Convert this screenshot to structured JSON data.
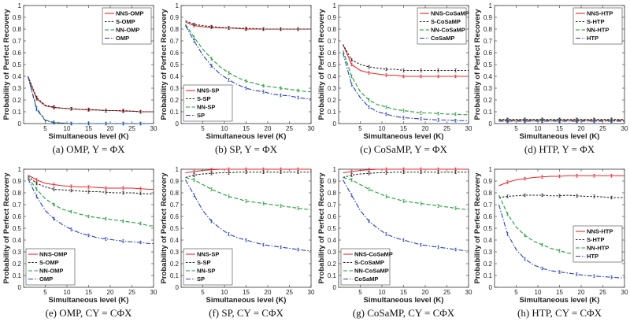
{
  "colors": {
    "NNS": "#e8262b",
    "S": "#222222",
    "NN": "#1f9a35",
    "base": "#2540b8"
  },
  "chart_data": [
    {
      "type": "line",
      "caption": "(a) OMP, Y = ΦX",
      "xlabel": "Simultaneous level (K)",
      "ylabel": "Probability  of  Perfect  Recovery",
      "xlim": [
        0,
        30
      ],
      "ylim": [
        0,
        1
      ],
      "xticks": [
        5,
        10,
        15,
        20,
        25,
        30
      ],
      "yticks": [
        0,
        0.1,
        0.2,
        0.3,
        0.4,
        0.5,
        0.6,
        0.7,
        0.8,
        0.9,
        1
      ],
      "legend_pos": "top-right",
      "x": [
        1,
        3,
        5,
        7,
        9,
        11,
        13,
        15,
        17,
        19,
        21,
        23,
        25,
        27,
        29,
        30
      ],
      "series": [
        {
          "name": "NNS-OMP",
          "style": "NNS",
          "values": [
            0.4,
            0.21,
            0.15,
            0.135,
            0.13,
            0.125,
            0.12,
            0.115,
            0.115,
            0.11,
            0.11,
            0.105,
            0.105,
            0.1,
            0.1,
            0.1
          ]
        },
        {
          "name": "S-OMP",
          "style": "S",
          "values": [
            0.4,
            0.22,
            0.155,
            0.14,
            0.13,
            0.125,
            0.12,
            0.12,
            0.115,
            0.11,
            0.11,
            0.11,
            0.105,
            0.1,
            0.1,
            0.1
          ]
        },
        {
          "name": "NN-OMP",
          "style": "NN",
          "values": [
            0.4,
            0.13,
            0.03,
            0.01,
            0.005,
            0,
            0,
            0,
            0,
            0,
            0,
            0,
            0,
            0,
            0,
            0
          ]
        },
        {
          "name": "OMP",
          "style": "base",
          "values": [
            0.4,
            0.12,
            0.025,
            0.008,
            0.003,
            0,
            0,
            0,
            0,
            0,
            0,
            0,
            0,
            0,
            0,
            0
          ]
        }
      ]
    },
    {
      "type": "line",
      "caption": "(b) SP, Y = ΦX",
      "xlabel": "Simultaneous level (K)",
      "ylabel": "Probability  of  Perfect  Recovery",
      "xlim": [
        0,
        30
      ],
      "ylim": [
        0,
        1
      ],
      "xticks": [
        5,
        10,
        15,
        20,
        25,
        30
      ],
      "yticks": [
        0,
        0.1,
        0.2,
        0.3,
        0.4,
        0.5,
        0.6,
        0.7,
        0.8,
        0.9,
        1
      ],
      "legend_pos": "bottom-left",
      "x": [
        1,
        3,
        5,
        7,
        9,
        11,
        13,
        15,
        17,
        19,
        21,
        23,
        25,
        27,
        29,
        30
      ],
      "series": [
        {
          "name": "NNS-SP",
          "style": "NNS",
          "values": [
            0.86,
            0.83,
            0.82,
            0.815,
            0.81,
            0.81,
            0.805,
            0.8,
            0.8,
            0.8,
            0.8,
            0.8,
            0.8,
            0.8,
            0.8,
            0.8
          ]
        },
        {
          "name": "S-SP",
          "style": "S",
          "values": [
            0.87,
            0.84,
            0.83,
            0.82,
            0.815,
            0.81,
            0.81,
            0.805,
            0.805,
            0.8,
            0.8,
            0.8,
            0.8,
            0.8,
            0.8,
            0.8
          ]
        },
        {
          "name": "NN-SP",
          "style": "NN",
          "values": [
            0.84,
            0.73,
            0.63,
            0.55,
            0.48,
            0.43,
            0.39,
            0.36,
            0.34,
            0.32,
            0.31,
            0.3,
            0.29,
            0.28,
            0.27,
            0.27
          ]
        },
        {
          "name": "SP",
          "style": "base",
          "values": [
            0.83,
            0.7,
            0.58,
            0.49,
            0.42,
            0.37,
            0.33,
            0.3,
            0.28,
            0.27,
            0.25,
            0.24,
            0.235,
            0.22,
            0.21,
            0.21
          ]
        }
      ]
    },
    {
      "type": "line",
      "caption": "(c) CoSaMP, Y = ΦX",
      "xlabel": "Simultaneous level (K)",
      "ylabel": "Probability  of  Perfect  Recovery",
      "xlim": [
        0,
        30
      ],
      "ylim": [
        0,
        1
      ],
      "xticks": [
        5,
        10,
        15,
        20,
        25,
        30
      ],
      "yticks": [
        0,
        0.1,
        0.2,
        0.3,
        0.4,
        0.5,
        0.6,
        0.7,
        0.8,
        0.9,
        1
      ],
      "legend_pos": "top-right",
      "x": [
        1,
        3,
        5,
        7,
        9,
        11,
        13,
        15,
        17,
        19,
        21,
        23,
        25,
        27,
        29,
        30
      ],
      "series": [
        {
          "name": "NNS-CoSaMP",
          "style": "NNS",
          "values": [
            0.67,
            0.5,
            0.45,
            0.43,
            0.42,
            0.41,
            0.41,
            0.4,
            0.4,
            0.4,
            0.4,
            0.4,
            0.4,
            0.4,
            0.4,
            0.4
          ]
        },
        {
          "name": "S-CoSaMP",
          "style": "S",
          "values": [
            0.67,
            0.54,
            0.5,
            0.48,
            0.47,
            0.46,
            0.46,
            0.45,
            0.45,
            0.45,
            0.45,
            0.45,
            0.45,
            0.45,
            0.45,
            0.45
          ]
        },
        {
          "name": "NN-CoSaMP",
          "style": "NN",
          "values": [
            0.62,
            0.4,
            0.27,
            0.2,
            0.16,
            0.14,
            0.12,
            0.11,
            0.1,
            0.09,
            0.09,
            0.085,
            0.08,
            0.08,
            0.075,
            0.075
          ]
        },
        {
          "name": "CoSaMP",
          "style": "base",
          "values": [
            0.6,
            0.33,
            0.22,
            0.14,
            0.1,
            0.08,
            0.06,
            0.05,
            0.045,
            0.04,
            0.035,
            0.03,
            0.03,
            0.025,
            0.025,
            0.025
          ]
        }
      ]
    },
    {
      "type": "line",
      "caption": "(d) HTP, Y = ΦX",
      "xlabel": "Simultaneous level (K)",
      "ylabel": "Probability  of  Perfect  Recovery",
      "xlim": [
        0,
        30
      ],
      "ylim": [
        0,
        1
      ],
      "xticks": [
        5,
        10,
        15,
        20,
        25,
        30
      ],
      "yticks": [
        0,
        0.1,
        0.2,
        0.3,
        0.4,
        0.5,
        0.6,
        0.7,
        0.8,
        0.9,
        1
      ],
      "legend_pos": "top-right",
      "x": [
        1,
        3,
        5,
        7,
        9,
        11,
        13,
        15,
        17,
        19,
        21,
        23,
        25,
        27,
        29,
        30
      ],
      "series": [
        {
          "name": "NNS-HTP",
          "style": "NNS",
          "values": [
            0.03,
            0.03,
            0.03,
            0.03,
            0.03,
            0.03,
            0.03,
            0.03,
            0.03,
            0.03,
            0.03,
            0.03,
            0.03,
            0.03,
            0.03,
            0.03
          ]
        },
        {
          "name": "S-HTP",
          "style": "S",
          "values": [
            0.035,
            0.035,
            0.035,
            0.035,
            0.035,
            0.035,
            0.035,
            0.035,
            0.035,
            0.035,
            0.035,
            0.035,
            0.035,
            0.035,
            0.035,
            0.035
          ]
        },
        {
          "name": "NN-HTP",
          "style": "NN",
          "values": [
            0.025,
            0.025,
            0.025,
            0.025,
            0.025,
            0.025,
            0.025,
            0.025,
            0.025,
            0.025,
            0.025,
            0.025,
            0.025,
            0.025,
            0.025,
            0.025
          ]
        },
        {
          "name": "HTP",
          "style": "base",
          "values": [
            0.02,
            0.02,
            0.02,
            0.02,
            0.02,
            0.02,
            0.02,
            0.02,
            0.02,
            0.02,
            0.02,
            0.02,
            0.02,
            0.02,
            0.02,
            0.02
          ]
        }
      ]
    },
    {
      "type": "line",
      "caption": "(e) OMP, CY = CΦX",
      "xlabel": "Simultaneous level (K)",
      "ylabel": "Probability  of  Perfect  Recovery",
      "xlim": [
        0,
        30
      ],
      "ylim": [
        0,
        1
      ],
      "xticks": [
        5,
        10,
        15,
        20,
        25,
        30
      ],
      "yticks": [
        0,
        0.1,
        0.2,
        0.3,
        0.4,
        0.5,
        0.6,
        0.7,
        0.8,
        0.9,
        1
      ],
      "legend_pos": "bottom-left",
      "x": [
        1,
        3,
        5,
        7,
        9,
        11,
        13,
        15,
        17,
        19,
        21,
        23,
        25,
        27,
        29,
        30
      ],
      "series": [
        {
          "name": "NNS-OMP",
          "style": "NNS",
          "values": [
            0.95,
            0.91,
            0.88,
            0.87,
            0.86,
            0.855,
            0.85,
            0.85,
            0.845,
            0.84,
            0.84,
            0.84,
            0.84,
            0.835,
            0.83,
            0.83
          ]
        },
        {
          "name": "S-OMP",
          "style": "S",
          "values": [
            0.94,
            0.88,
            0.85,
            0.83,
            0.825,
            0.82,
            0.815,
            0.81,
            0.81,
            0.805,
            0.8,
            0.8,
            0.8,
            0.795,
            0.79,
            0.79
          ]
        },
        {
          "name": "NN-OMP",
          "style": "NN",
          "values": [
            0.93,
            0.83,
            0.75,
            0.7,
            0.66,
            0.64,
            0.62,
            0.6,
            0.59,
            0.58,
            0.57,
            0.56,
            0.55,
            0.54,
            0.52,
            0.52
          ]
        },
        {
          "name": "OMP",
          "style": "base",
          "values": [
            0.92,
            0.77,
            0.65,
            0.58,
            0.53,
            0.49,
            0.46,
            0.44,
            0.42,
            0.41,
            0.4,
            0.39,
            0.385,
            0.38,
            0.37,
            0.37
          ]
        }
      ]
    },
    {
      "type": "line",
      "caption": "(f) SP, CY = CΦX",
      "xlabel": "Simultaneous level (K)",
      "ylabel": "Probability  of  Perfect  Recovery",
      "xlim": [
        0,
        30
      ],
      "ylim": [
        0,
        1
      ],
      "xticks": [
        5,
        10,
        15,
        20,
        25,
        30
      ],
      "yticks": [
        0,
        0.1,
        0.2,
        0.3,
        0.4,
        0.5,
        0.6,
        0.7,
        0.8,
        0.9,
        1
      ],
      "legend_pos": "bottom-left",
      "x": [
        1,
        3,
        5,
        7,
        9,
        11,
        13,
        15,
        17,
        19,
        21,
        23,
        25,
        27,
        29,
        30
      ],
      "series": [
        {
          "name": "NNS-SP",
          "style": "NNS",
          "values": [
            0.97,
            0.98,
            0.99,
            0.995,
            1,
            1,
            1,
            1,
            1,
            1,
            1,
            1,
            1,
            1,
            1,
            1
          ]
        },
        {
          "name": "S-SP",
          "style": "S",
          "values": [
            0.93,
            0.95,
            0.96,
            0.965,
            0.97,
            0.97,
            0.975,
            0.975,
            0.975,
            0.975,
            0.975,
            0.975,
            0.975,
            0.975,
            0.975,
            0.975
          ]
        },
        {
          "name": "NN-SP",
          "style": "NN",
          "values": [
            0.93,
            0.91,
            0.87,
            0.83,
            0.8,
            0.77,
            0.75,
            0.73,
            0.72,
            0.71,
            0.7,
            0.69,
            0.68,
            0.67,
            0.66,
            0.66
          ]
        },
        {
          "name": "SP",
          "style": "base",
          "values": [
            0.91,
            0.78,
            0.65,
            0.56,
            0.5,
            0.45,
            0.42,
            0.4,
            0.38,
            0.36,
            0.35,
            0.34,
            0.33,
            0.32,
            0.31,
            0.31
          ]
        }
      ]
    },
    {
      "type": "line",
      "caption": "(g) CoSaMP, CY = CΦX",
      "xlabel": "Simultaneous level (K)",
      "ylabel": "Probability  of  Perfect  Recovery",
      "xlim": [
        0,
        30
      ],
      "ylim": [
        0,
        1
      ],
      "xticks": [
        5,
        10,
        15,
        20,
        25,
        30
      ],
      "yticks": [
        0,
        0.1,
        0.2,
        0.3,
        0.4,
        0.5,
        0.6,
        0.7,
        0.8,
        0.9,
        1
      ],
      "legend_pos": "bottom-left",
      "x": [
        1,
        3,
        5,
        7,
        9,
        11,
        13,
        15,
        17,
        19,
        21,
        23,
        25,
        27,
        29,
        30
      ],
      "series": [
        {
          "name": "NNS-CoSaMP",
          "style": "NNS",
          "values": [
            0.97,
            0.98,
            0.99,
            0.995,
            1,
            1,
            1,
            1,
            1,
            1,
            1,
            1,
            1,
            1,
            1,
            1
          ]
        },
        {
          "name": "S-CoSaMP",
          "style": "S",
          "values": [
            0.93,
            0.95,
            0.96,
            0.965,
            0.97,
            0.97,
            0.975,
            0.975,
            0.975,
            0.975,
            0.975,
            0.975,
            0.975,
            0.975,
            0.975,
            0.975
          ]
        },
        {
          "name": "NN-CoSaMP",
          "style": "NN",
          "values": [
            0.93,
            0.91,
            0.87,
            0.83,
            0.8,
            0.77,
            0.75,
            0.73,
            0.72,
            0.71,
            0.7,
            0.69,
            0.68,
            0.67,
            0.66,
            0.66
          ]
        },
        {
          "name": "CoSaMP",
          "style": "base",
          "values": [
            0.91,
            0.78,
            0.65,
            0.56,
            0.5,
            0.45,
            0.42,
            0.4,
            0.38,
            0.36,
            0.35,
            0.34,
            0.33,
            0.32,
            0.31,
            0.31
          ]
        }
      ]
    },
    {
      "type": "line",
      "caption": "(h) HTP, CY = CΦX",
      "xlabel": "Simultaneous level (K)",
      "ylabel": "Probability  of  Perfect  Recovery",
      "xlim": [
        0,
        30
      ],
      "ylim": [
        0,
        1
      ],
      "xticks": [
        5,
        10,
        15,
        20,
        25,
        30
      ],
      "yticks": [
        0,
        0.1,
        0.2,
        0.3,
        0.4,
        0.5,
        0.6,
        0.7,
        0.8,
        0.9,
        1
      ],
      "legend_pos": "right",
      "x": [
        1,
        3,
        5,
        7,
        9,
        11,
        13,
        15,
        17,
        19,
        21,
        23,
        25,
        27,
        29,
        30
      ],
      "series": [
        {
          "name": "NNS-HTP",
          "style": "NNS",
          "values": [
            0.86,
            0.89,
            0.91,
            0.92,
            0.93,
            0.935,
            0.94,
            0.94,
            0.945,
            0.945,
            0.945,
            0.945,
            0.945,
            0.945,
            0.945,
            0.945
          ]
        },
        {
          "name": "S-HTP",
          "style": "S",
          "values": [
            0.76,
            0.77,
            0.775,
            0.78,
            0.78,
            0.78,
            0.775,
            0.775,
            0.78,
            0.775,
            0.77,
            0.77,
            0.765,
            0.76,
            0.76,
            0.76
          ]
        },
        {
          "name": "NN-HTP",
          "style": "NN",
          "values": [
            0.78,
            0.62,
            0.51,
            0.44,
            0.39,
            0.36,
            0.33,
            0.31,
            0.29,
            0.28,
            0.27,
            0.26,
            0.25,
            0.24,
            0.23,
            0.23
          ]
        },
        {
          "name": "HTP",
          "style": "base",
          "values": [
            0.7,
            0.45,
            0.32,
            0.24,
            0.19,
            0.16,
            0.14,
            0.13,
            0.12,
            0.11,
            0.1,
            0.095,
            0.09,
            0.085,
            0.08,
            0.08
          ]
        }
      ]
    }
  ]
}
